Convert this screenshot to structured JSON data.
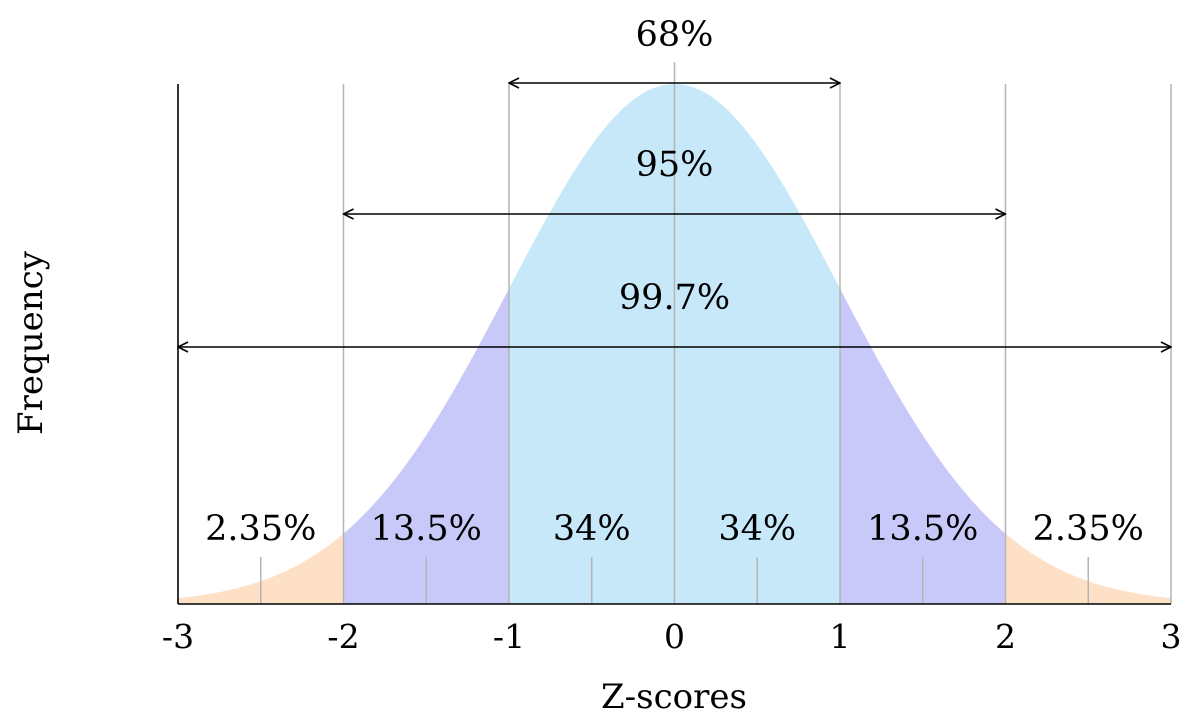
{
  "chart_data": {
    "type": "area",
    "title": "",
    "xlabel": "Z-scores",
    "ylabel": "Frequency",
    "xlim": [
      -3,
      3
    ],
    "x_ticks": [
      "-3",
      "-2",
      "-1",
      "0",
      "1",
      "2",
      "3"
    ],
    "distribution": "standard normal",
    "bands": [
      {
        "from": -3,
        "to": -2,
        "label": "2.35%",
        "color": "#fde0c5"
      },
      {
        "from": -2,
        "to": -1,
        "label": "13.5%",
        "color": "#c9c9f9"
      },
      {
        "from": -1,
        "to": 0,
        "label": "34%",
        "color": "#c6e8f9"
      },
      {
        "from": 0,
        "to": 1,
        "label": "34%",
        "color": "#c6e8f9"
      },
      {
        "from": 1,
        "to": 2,
        "label": "13.5%",
        "color": "#c9c9f9"
      },
      {
        "from": 2,
        "to": 3,
        "label": "2.35%",
        "color": "#fde0c5"
      }
    ],
    "ranges": [
      {
        "from": -1,
        "to": 1,
        "label": "68%"
      },
      {
        "from": -2,
        "to": 2,
        "label": "95%"
      },
      {
        "from": -3,
        "to": 3,
        "label": "99.7%"
      }
    ],
    "colors": {
      "gridline": "#b4b4b4",
      "axis": "#000000"
    }
  }
}
